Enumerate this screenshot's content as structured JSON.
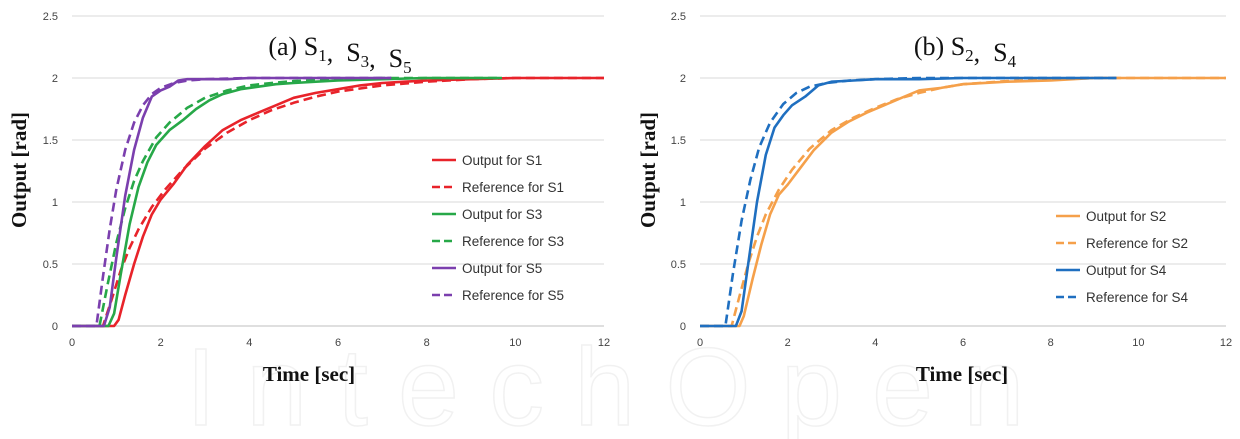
{
  "watermark": {
    "label": "IntechOpen"
  },
  "chart_data": [
    {
      "type": "line",
      "title_main": "(a) S",
      "title_parts": [
        {
          "base": "S",
          "sub": "1"
        },
        {
          "base": "S",
          "sub": "3"
        },
        {
          "base": "S",
          "sub": "5"
        }
      ],
      "xlabel": "Time [sec]",
      "ylabel": "Output [rad]",
      "xlim": [
        0,
        12
      ],
      "ylim": [
        0,
        2.5
      ],
      "xticks": [
        0,
        2,
        4,
        6,
        8,
        10,
        12
      ],
      "yticks": [
        0,
        0.5,
        1,
        1.5,
        2,
        2.5
      ],
      "grid": "horizontal",
      "legend_position": "right",
      "series": [
        {
          "name": "Output for S1",
          "color": "#e8232a",
          "dash": false,
          "x": [
            0,
            0.95,
            1.05,
            1.2,
            1.4,
            1.6,
            1.8,
            2.0,
            2.3,
            2.6,
            3.0,
            3.4,
            3.8,
            4.2,
            4.6,
            5.0,
            5.5,
            6.0,
            6.5,
            7.0,
            7.5,
            8.0,
            9.0,
            10.0,
            11.0,
            12.0
          ],
          "y": [
            0,
            0,
            0.05,
            0.25,
            0.5,
            0.72,
            0.9,
            1.02,
            1.15,
            1.3,
            1.45,
            1.58,
            1.66,
            1.72,
            1.78,
            1.84,
            1.88,
            1.91,
            1.94,
            1.96,
            1.97,
            1.98,
            1.99,
            2.0,
            2.0,
            2.0
          ]
        },
        {
          "name": "Reference for S1",
          "color": "#e8232a",
          "dash": true,
          "x": [
            0,
            0.7,
            0.9,
            1.1,
            1.3,
            1.5,
            1.8,
            2.1,
            2.5,
            3.0,
            3.5,
            4.0,
            4.5,
            5.0,
            5.5,
            6.0,
            7.0,
            8.0,
            9.0,
            10.0,
            12.0
          ],
          "y": [
            0,
            0,
            0.22,
            0.45,
            0.63,
            0.78,
            0.96,
            1.1,
            1.26,
            1.43,
            1.56,
            1.66,
            1.74,
            1.8,
            1.85,
            1.89,
            1.94,
            1.97,
            1.99,
            2.0,
            2.0
          ]
        },
        {
          "name": "Output for S3",
          "color": "#27a848",
          "dash": false,
          "x": [
            0,
            0.82,
            0.95,
            1.1,
            1.3,
            1.5,
            1.7,
            1.9,
            2.2,
            2.5,
            2.8,
            3.1,
            3.4,
            3.8,
            4.2,
            4.6,
            5.0,
            5.5,
            6.0,
            7.0,
            8.0,
            9.0,
            9.7
          ],
          "y": [
            0,
            0,
            0.1,
            0.42,
            0.82,
            1.12,
            1.32,
            1.46,
            1.58,
            1.66,
            1.75,
            1.82,
            1.87,
            1.91,
            1.93,
            1.95,
            1.96,
            1.97,
            1.98,
            1.99,
            2.0,
            2.0,
            2.0
          ]
        },
        {
          "name": "Reference for S3",
          "color": "#27a848",
          "dash": true,
          "x": [
            0,
            0.62,
            0.8,
            1.0,
            1.2,
            1.4,
            1.6,
            1.9,
            2.2,
            2.6,
            3.0,
            3.5,
            4.0,
            4.5,
            5.0,
            6.0,
            7.0,
            8.0,
            9.0,
            9.7
          ],
          "y": [
            0,
            0,
            0.33,
            0.67,
            0.95,
            1.17,
            1.33,
            1.52,
            1.64,
            1.76,
            1.84,
            1.9,
            1.94,
            1.96,
            1.975,
            1.99,
            2.0,
            2.0,
            2.0,
            2.0
          ]
        },
        {
          "name": "Output for S5",
          "color": "#7b3fae",
          "dash": false,
          "x": [
            0,
            0.72,
            0.85,
            1.0,
            1.2,
            1.4,
            1.6,
            1.8,
            2.0,
            2.2,
            2.4,
            2.6,
            3.0,
            3.5,
            4.0,
            5.0,
            6.0,
            7.2
          ],
          "y": [
            0,
            0,
            0.15,
            0.55,
            1.05,
            1.42,
            1.68,
            1.85,
            1.9,
            1.93,
            1.98,
            1.99,
            1.99,
            1.99,
            2.0,
            2.0,
            2.0,
            2.0
          ]
        },
        {
          "name": "Reference for S5",
          "color": "#7b3fae",
          "dash": true,
          "x": [
            0,
            0.55,
            0.7,
            0.85,
            1.0,
            1.2,
            1.4,
            1.6,
            1.8,
            2.0,
            2.3,
            2.6,
            3.0,
            4.0,
            5.0,
            6.0,
            7.2
          ],
          "y": [
            0,
            0,
            0.4,
            0.78,
            1.1,
            1.42,
            1.64,
            1.78,
            1.87,
            1.92,
            1.96,
            1.98,
            1.99,
            2.0,
            2.0,
            2.0,
            2.0
          ]
        }
      ]
    },
    {
      "type": "line",
      "title_main": "(b) S",
      "title_parts": [
        {
          "base": "S",
          "sub": "2"
        },
        {
          "base": "S",
          "sub": "4"
        }
      ],
      "xlabel": "Time [sec]",
      "ylabel": "Output [rad]",
      "xlim": [
        0,
        12
      ],
      "ylim": [
        0,
        2.5
      ],
      "xticks": [
        0,
        2,
        4,
        6,
        8,
        10,
        12
      ],
      "yticks": [
        0,
        0.5,
        1,
        1.5,
        2,
        2.5
      ],
      "grid": "horizontal",
      "legend_position": "right",
      "series": [
        {
          "name": "Output for S2",
          "color": "#f5a04a",
          "dash": false,
          "x": [
            0,
            0.9,
            1.0,
            1.2,
            1.4,
            1.6,
            1.8,
            2.0,
            2.3,
            2.6,
            3.0,
            3.4,
            3.8,
            4.2,
            4.6,
            5.0,
            5.5,
            6.0,
            7.0,
            8.0,
            9.0,
            10.0,
            12.0
          ],
          "y": [
            0,
            0,
            0.08,
            0.38,
            0.66,
            0.9,
            1.06,
            1.14,
            1.28,
            1.42,
            1.56,
            1.65,
            1.72,
            1.78,
            1.84,
            1.9,
            1.92,
            1.95,
            1.97,
            1.98,
            2.0,
            2.0,
            2.0
          ]
        },
        {
          "name": "Reference for S2",
          "color": "#f5a04a",
          "dash": true,
          "x": [
            0,
            0.72,
            0.9,
            1.1,
            1.3,
            1.5,
            1.8,
            2.1,
            2.5,
            3.0,
            3.5,
            4.0,
            4.5,
            5.0,
            5.5,
            6.0,
            7.0,
            8.0,
            9.0,
            10.0,
            12.0
          ],
          "y": [
            0,
            0,
            0.24,
            0.5,
            0.72,
            0.9,
            1.1,
            1.26,
            1.43,
            1.58,
            1.68,
            1.76,
            1.83,
            1.88,
            1.92,
            1.95,
            1.975,
            1.99,
            2.0,
            2.0,
            2.0
          ]
        },
        {
          "name": "Output for S4",
          "color": "#1f6fc0",
          "dash": false,
          "x": [
            0,
            0.82,
            0.95,
            1.1,
            1.3,
            1.5,
            1.7,
            1.9,
            2.1,
            2.4,
            2.7,
            3.0,
            3.5,
            4.0,
            5.0,
            6.0,
            7.0,
            8.0,
            9.5
          ],
          "y": [
            0,
            0,
            0.12,
            0.5,
            1.0,
            1.38,
            1.6,
            1.7,
            1.78,
            1.85,
            1.94,
            1.97,
            1.98,
            1.99,
            1.99,
            2.0,
            2.0,
            2.0,
            2.0
          ]
        },
        {
          "name": "Reference for S4",
          "color": "#1f6fc0",
          "dash": true,
          "x": [
            0,
            0.58,
            0.75,
            0.95,
            1.15,
            1.35,
            1.6,
            1.9,
            2.2,
            2.5,
            2.9,
            3.4,
            4.0,
            5.0,
            6.0,
            7.0,
            8.0,
            9.5
          ],
          "y": [
            0,
            0,
            0.42,
            0.85,
            1.18,
            1.44,
            1.64,
            1.79,
            1.88,
            1.93,
            1.96,
            1.98,
            1.99,
            2.0,
            2.0,
            2.0,
            2.0,
            2.0
          ]
        }
      ]
    }
  ]
}
